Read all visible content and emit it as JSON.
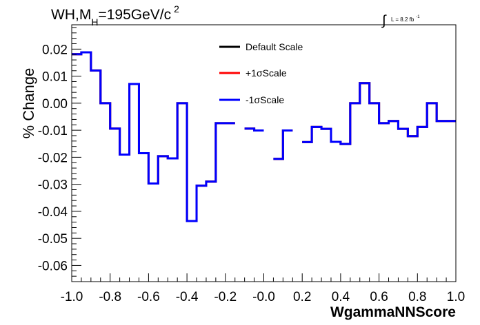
{
  "chart_data": {
    "type": "line",
    "title": "WH,M_H=195GeV/c^2",
    "title_parts": {
      "main": "WH,M",
      "sub": "H",
      "mid": "=195GeV/c",
      "sup": "2"
    },
    "lumi": {
      "label": "L = 8.2 fb",
      "sup": "-1"
    },
    "xlabel": "WgammaNNScore",
    "ylabel": "% Change",
    "xlim": [
      -1.0,
      1.0
    ],
    "ylim": [
      -0.066,
      0.029
    ],
    "x_ticks": [
      "-1.0",
      "-0.8",
      "-0.6",
      "-0.4",
      "-0.2",
      "-0.0",
      "0.2",
      "0.4",
      "0.6",
      "0.8",
      "1.0"
    ],
    "y_ticks": [
      "0.02",
      "0.01",
      "0.00",
      "-0.01",
      "-0.02",
      "-0.03",
      "-0.04",
      "-0.05",
      "-0.06"
    ],
    "bin_edges": [
      -1.0,
      -0.95,
      -0.9,
      -0.85,
      -0.8,
      -0.75,
      -0.7,
      -0.65,
      -0.6,
      -0.55,
      -0.5,
      -0.45,
      -0.4,
      -0.35,
      -0.3,
      -0.25,
      -0.2,
      -0.15,
      -0.1,
      -0.05,
      0.0,
      0.05,
      0.1,
      0.15,
      0.2,
      0.25,
      0.3,
      0.35,
      0.4,
      0.45,
      0.5,
      0.55,
      0.6,
      0.65,
      0.7,
      0.75,
      0.8,
      0.85,
      0.9,
      0.95,
      1.0
    ],
    "legend": {
      "position": "top-center"
    },
    "series": [
      {
        "name": "Default Scale",
        "color": "#000000",
        "values": [
          0.0181,
          0.0188,
          0.0121,
          0.0,
          -0.0094,
          -0.019,
          0.0071,
          -0.0185,
          -0.0297,
          -0.0196,
          -0.0204,
          0.0,
          -0.0436,
          -0.0305,
          -0.029,
          -0.0074,
          -0.0074,
          null,
          -0.0094,
          -0.0101,
          null,
          -0.0206,
          -0.0101,
          null,
          -0.0144,
          -0.0088,
          -0.0095,
          -0.0143,
          -0.0151,
          0.0,
          0.0074,
          0.0,
          -0.0074,
          -0.0066,
          -0.0095,
          -0.0122,
          -0.0088,
          0.0,
          -0.0066,
          -0.0066
        ]
      },
      {
        "name": "+1σScale",
        "color": "#ff0000",
        "values": [
          0.0181,
          0.0188,
          0.0121,
          0.0,
          -0.0094,
          -0.019,
          0.0071,
          -0.0185,
          -0.0297,
          -0.0196,
          -0.0204,
          0.0,
          -0.0436,
          -0.0305,
          -0.029,
          -0.0074,
          -0.0074,
          null,
          -0.0094,
          -0.0101,
          null,
          -0.0206,
          -0.0101,
          null,
          -0.0144,
          -0.0088,
          -0.0095,
          -0.0143,
          -0.0151,
          0.0,
          0.0074,
          0.0,
          -0.0074,
          -0.0066,
          -0.0095,
          -0.0122,
          -0.0088,
          0.0,
          -0.0066,
          -0.0066
        ]
      },
      {
        "name": "-1σScale",
        "color": "#0000ff",
        "values": [
          0.0181,
          0.0188,
          0.0121,
          0.0,
          -0.0094,
          -0.019,
          0.0071,
          -0.0185,
          -0.0297,
          -0.0196,
          -0.0204,
          0.0,
          -0.0436,
          -0.0305,
          -0.029,
          -0.0074,
          -0.0074,
          null,
          -0.0094,
          -0.0101,
          null,
          -0.0206,
          -0.0101,
          null,
          -0.0144,
          -0.0088,
          -0.0095,
          -0.0143,
          -0.0151,
          0.0,
          0.0074,
          0.0,
          -0.0074,
          -0.0066,
          -0.0095,
          -0.0122,
          -0.0088,
          0.0,
          -0.0066,
          -0.0066
        ]
      }
    ]
  }
}
